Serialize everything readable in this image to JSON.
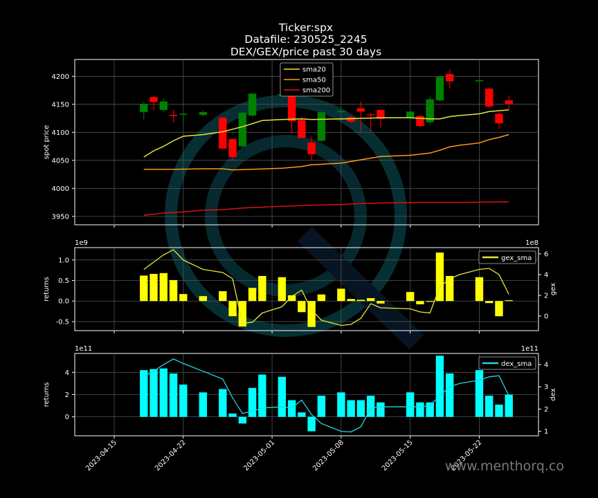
{
  "title_lines": [
    "Ticker:spx",
    "Datafile: 230525_2245",
    "DEX/GEX/price past 30 days"
  ],
  "watermark": "www.menthorq.co",
  "colors": {
    "background": "#000000",
    "up": "#008000",
    "down": "#ff0000",
    "sma20": "#e8e83a",
    "sma50": "#ff9a1a",
    "sma200": "#e01010",
    "gex_bar": "#ffff00",
    "gex_line": "#e8e83a",
    "dex_bar": "#00ffff",
    "dex_line": "#22d8e0",
    "grid": "#555555"
  },
  "x_dates": [
    "2023-04-18",
    "2023-04-19",
    "2023-04-20",
    "2023-04-21",
    "2023-04-22",
    "2023-04-24",
    "2023-04-26",
    "2023-04-27",
    "2023-04-28",
    "2023-04-29",
    "2023-04-30",
    "2023-05-02",
    "2023-05-03",
    "2023-05-04",
    "2023-05-05",
    "2023-05-06",
    "2023-05-08",
    "2023-05-09",
    "2023-05-10",
    "2023-05-11",
    "2023-05-12",
    "2023-05-13",
    "2023-05-15",
    "2023-05-16",
    "2023-05-17",
    "2023-05-18",
    "2023-05-19",
    "2023-05-20",
    "2023-05-22",
    "2023-05-23",
    "2023-05-24",
    "2023-05-25"
  ],
  "x_ticks": [
    "2023-04-15",
    "2023-04-22",
    "2023-05-01",
    "2023-05-08",
    "2023-05-15",
    "2023-05-22"
  ],
  "chart_data": [
    {
      "type": "candlestick",
      "ylabel": "spot price",
      "ylim": [
        3935,
        4230
      ],
      "yticks": [
        3950,
        4000,
        4050,
        4100,
        4150,
        4200
      ],
      "legend_position": "top-center",
      "candles": [
        {
          "date": "2023-04-18",
          "open": 4136,
          "close": 4151,
          "high": 4154,
          "low": 4123
        },
        {
          "date": "2023-04-19",
          "open": 4163,
          "close": 4154,
          "high": 4165,
          "low": 4139
        },
        {
          "date": "2023-04-20",
          "open": 4140,
          "close": 4155,
          "high": 4160,
          "low": 4136
        },
        {
          "date": "2023-04-21",
          "open": 4131,
          "close": 4129,
          "high": 4140,
          "low": 4117
        },
        {
          "date": "2023-04-22",
          "open": 4132,
          "close": 4133,
          "high": 4135,
          "low": 4116
        },
        {
          "date": "2023-04-24",
          "open": 4131,
          "close": 4136,
          "high": 4139,
          "low": 4129
        },
        {
          "date": "2023-04-26",
          "open": 4126,
          "close": 4071,
          "high": 4128,
          "low": 4070
        },
        {
          "date": "2023-04-27",
          "open": 4088,
          "close": 4056,
          "high": 4089,
          "low": 4050
        },
        {
          "date": "2023-04-28",
          "open": 4075,
          "close": 4135,
          "high": 4137,
          "low": 4073
        },
        {
          "date": "2023-04-29",
          "open": 4130,
          "close": 4169,
          "high": 4170,
          "low": 4127
        },
        {
          "date": "2023-05-02",
          "open": 4166,
          "close": 4168,
          "high": 4169,
          "low": 4164
        },
        {
          "date": "2023-05-03",
          "open": 4165,
          "close": 4120,
          "high": 4167,
          "low": 4098
        },
        {
          "date": "2023-05-04",
          "open": 4122,
          "close": 4090,
          "high": 4128,
          "low": 4089
        },
        {
          "date": "2023-05-05",
          "open": 4082,
          "close": 4061,
          "high": 4092,
          "low": 4050
        },
        {
          "date": "2023-05-06",
          "open": 4085,
          "close": 4136,
          "high": 4138,
          "low": 4083
        },
        {
          "date": "2023-05-08",
          "open": 4136,
          "close": 4138,
          "high": 4140,
          "low": 4134
        },
        {
          "date": "2023-05-09",
          "open": 4127,
          "close": 4119,
          "high": 4129,
          "low": 4116
        },
        {
          "date": "2023-05-10",
          "open": 4143,
          "close": 4137,
          "high": 4155,
          "low": 4100
        },
        {
          "date": "2023-05-11",
          "open": 4132,
          "close": 4131,
          "high": 4135,
          "low": 4102
        },
        {
          "date": "2023-05-12",
          "open": 4140,
          "close": 4124,
          "high": 4142,
          "low": 4108
        },
        {
          "date": "2023-05-15",
          "open": 4126,
          "close": 4137,
          "high": 4138,
          "low": 4125
        },
        {
          "date": "2023-05-16",
          "open": 4129,
          "close": 4111,
          "high": 4131,
          "low": 4109
        },
        {
          "date": "2023-05-17",
          "open": 4118,
          "close": 4159,
          "high": 4164,
          "low": 4113
        },
        {
          "date": "2023-05-18",
          "open": 4157,
          "close": 4199,
          "high": 4200,
          "low": 4155
        },
        {
          "date": "2023-05-19",
          "open": 4204,
          "close": 4191,
          "high": 4212,
          "low": 4178
        },
        {
          "date": "2023-05-22",
          "open": 4191,
          "close": 4193,
          "high": 4196,
          "low": 4189
        },
        {
          "date": "2023-05-23",
          "open": 4178,
          "close": 4146,
          "high": 4180,
          "low": 4144
        },
        {
          "date": "2023-05-24",
          "open": 4133,
          "close": 4116,
          "high": 4135,
          "low": 4106
        },
        {
          "date": "2023-05-25",
          "open": 4157,
          "close": 4151,
          "high": 4166,
          "low": 4140
        }
      ],
      "series": [
        {
          "name": "sma20",
          "color": "#e8e83a",
          "points": [
            [
              "2023-04-18",
              4056
            ],
            [
              "2023-04-19",
              4067
            ],
            [
              "2023-04-20",
              4075
            ],
            [
              "2023-04-21",
              4085
            ],
            [
              "2023-04-22",
              4093
            ],
            [
              "2023-04-24",
              4096
            ],
            [
              "2023-04-26",
              4101
            ],
            [
              "2023-04-28",
              4110
            ],
            [
              "2023-04-30",
              4121
            ],
            [
              "2023-05-02",
              4123
            ],
            [
              "2023-05-04",
              4124
            ],
            [
              "2023-05-05",
              4123
            ],
            [
              "2023-05-08",
              4124
            ],
            [
              "2023-05-12",
              4126
            ],
            [
              "2023-05-15",
              4126
            ],
            [
              "2023-05-17",
              4124
            ],
            [
              "2023-05-18",
              4124
            ],
            [
              "2023-05-19",
              4128
            ],
            [
              "2023-05-20",
              4130
            ],
            [
              "2023-05-22",
              4133
            ],
            [
              "2023-05-23",
              4137
            ],
            [
              "2023-05-25",
              4140
            ]
          ]
        },
        {
          "name": "sma50",
          "color": "#ff9a1a",
          "points": [
            [
              "2023-04-18",
              4034
            ],
            [
              "2023-04-20",
              4034
            ],
            [
              "2023-04-21",
              4034
            ],
            [
              "2023-04-24",
              4035
            ],
            [
              "2023-04-26",
              4035
            ],
            [
              "2023-04-27",
              4033
            ],
            [
              "2023-04-29",
              4034
            ],
            [
              "2023-05-02",
              4036
            ],
            [
              "2023-05-04",
              4039
            ],
            [
              "2023-05-05",
              4042
            ],
            [
              "2023-05-08",
              4045
            ],
            [
              "2023-05-10",
              4051
            ],
            [
              "2023-05-12",
              4057
            ],
            [
              "2023-05-15",
              4059
            ],
            [
              "2023-05-17",
              4063
            ],
            [
              "2023-05-18",
              4068
            ],
            [
              "2023-05-19",
              4074
            ],
            [
              "2023-05-20",
              4077
            ],
            [
              "2023-05-22",
              4081
            ],
            [
              "2023-05-23",
              4087
            ],
            [
              "2023-05-24",
              4091
            ],
            [
              "2023-05-25",
              4096
            ]
          ]
        },
        {
          "name": "sma200",
          "color": "#e01010",
          "points": [
            [
              "2023-04-18",
              3952
            ],
            [
              "2023-04-20",
              3956
            ],
            [
              "2023-04-22",
              3958
            ],
            [
              "2023-04-24",
              3961
            ],
            [
              "2023-04-26",
              3962
            ],
            [
              "2023-04-28",
              3965
            ],
            [
              "2023-05-02",
              3968
            ],
            [
              "2023-05-05",
              3970
            ],
            [
              "2023-05-08",
              3971
            ],
            [
              "2023-05-10",
              3973
            ],
            [
              "2023-05-12",
              3974
            ],
            [
              "2023-05-16",
              3975
            ],
            [
              "2023-05-20",
              3975
            ],
            [
              "2023-05-25",
              3976
            ]
          ]
        }
      ]
    },
    {
      "type": "bar",
      "ylabel": "returns",
      "y2label": "gex",
      "exp_left": "1e9",
      "exp_right": "1e8",
      "ylim": [
        -0.72,
        1.3
      ],
      "yticks": [
        -0.5,
        0.0,
        0.5,
        1.0
      ],
      "ylim_right": [
        -1.4,
        6.6
      ],
      "yticks_right": [
        0,
        2,
        4,
        6
      ],
      "legend": "gex_sma",
      "bars": [
        [
          "2023-04-18",
          0.62
        ],
        [
          "2023-04-19",
          0.66
        ],
        [
          "2023-04-20",
          0.68
        ],
        [
          "2023-04-21",
          0.51
        ],
        [
          "2023-04-22",
          0.17
        ],
        [
          "2023-04-24",
          0.12
        ],
        [
          "2023-04-26",
          0.24
        ],
        [
          "2023-04-27",
          -0.37
        ],
        [
          "2023-04-28",
          -0.62
        ],
        [
          "2023-04-29",
          0.32
        ],
        [
          "2023-04-30",
          0.61
        ],
        [
          "2023-05-02",
          0.58
        ],
        [
          "2023-05-03",
          0.14
        ],
        [
          "2023-05-04",
          -0.27
        ],
        [
          "2023-05-05",
          -0.63
        ],
        [
          "2023-05-06",
          0.16
        ],
        [
          "2023-05-08",
          0.3
        ],
        [
          "2023-05-09",
          0.05
        ],
        [
          "2023-05-10",
          0.03
        ],
        [
          "2023-05-11",
          0.07
        ],
        [
          "2023-05-12",
          -0.06
        ],
        [
          "2023-05-15",
          0.22
        ],
        [
          "2023-05-16",
          -0.08
        ],
        [
          "2023-05-17",
          -0.02
        ],
        [
          "2023-05-18",
          1.18
        ],
        [
          "2023-05-19",
          0.61
        ],
        [
          "2023-05-22",
          0.58
        ],
        [
          "2023-05-23",
          -0.05
        ],
        [
          "2023-05-24",
          -0.37
        ],
        [
          "2023-05-25",
          0.02
        ]
      ],
      "line": [
        [
          "2023-04-18",
          4.5
        ],
        [
          "2023-04-19",
          5.2
        ],
        [
          "2023-04-20",
          5.9
        ],
        [
          "2023-04-21",
          6.4
        ],
        [
          "2023-04-22",
          5.4
        ],
        [
          "2023-04-24",
          4.5
        ],
        [
          "2023-04-26",
          4.2
        ],
        [
          "2023-04-27",
          3.6
        ],
        [
          "2023-04-28",
          -0.7
        ],
        [
          "2023-04-29",
          -0.6
        ],
        [
          "2023-04-30",
          0.3
        ],
        [
          "2023-05-02",
          0.9
        ],
        [
          "2023-05-03",
          1.9
        ],
        [
          "2023-05-04",
          2.5
        ],
        [
          "2023-05-05",
          0.6
        ],
        [
          "2023-05-06",
          -0.4
        ],
        [
          "2023-05-08",
          -0.9
        ],
        [
          "2023-05-09",
          -0.8
        ],
        [
          "2023-05-10",
          -0.2
        ],
        [
          "2023-05-11",
          1.2
        ],
        [
          "2023-05-12",
          0.8
        ],
        [
          "2023-05-15",
          0.7
        ],
        [
          "2023-05-16",
          0.4
        ],
        [
          "2023-05-17",
          0.3
        ],
        [
          "2023-05-18",
          2.8
        ],
        [
          "2023-05-19",
          3.6
        ],
        [
          "2023-05-20",
          4.0
        ],
        [
          "2023-05-22",
          4.5
        ],
        [
          "2023-05-23",
          4.6
        ],
        [
          "2023-05-24",
          4.0
        ],
        [
          "2023-05-25",
          2.1
        ]
      ]
    },
    {
      "type": "bar",
      "ylabel": "returns",
      "y2label": "dex",
      "exp_left": "1e11",
      "exp_right": "1e11",
      "ylim": [
        -1.7,
        5.7
      ],
      "yticks": [
        0,
        2,
        4
      ],
      "ylim_right": [
        0.8,
        4.5
      ],
      "yticks_right": [
        1,
        2,
        3,
        4
      ],
      "legend": "dex_sma",
      "bars": [
        [
          "2023-04-18",
          4.2
        ],
        [
          "2023-04-19",
          4.3
        ],
        [
          "2023-04-20",
          4.35
        ],
        [
          "2023-04-21",
          3.9
        ],
        [
          "2023-04-22",
          2.9
        ],
        [
          "2023-04-24",
          2.2
        ],
        [
          "2023-04-26",
          2.5
        ],
        [
          "2023-04-27",
          0.3
        ],
        [
          "2023-04-28",
          -0.6
        ],
        [
          "2023-04-29",
          2.6
        ],
        [
          "2023-04-30",
          3.8
        ],
        [
          "2023-05-02",
          3.6
        ],
        [
          "2023-05-03",
          1.5
        ],
        [
          "2023-05-04",
          0.4
        ],
        [
          "2023-05-05",
          -1.3
        ],
        [
          "2023-05-06",
          1.9
        ],
        [
          "2023-05-08",
          2.2
        ],
        [
          "2023-05-09",
          1.5
        ],
        [
          "2023-05-10",
          1.5
        ],
        [
          "2023-05-11",
          1.9
        ],
        [
          "2023-05-12",
          1.3
        ],
        [
          "2023-05-15",
          2.2
        ],
        [
          "2023-05-16",
          1.3
        ],
        [
          "2023-05-17",
          1.3
        ],
        [
          "2023-05-18",
          5.5
        ],
        [
          "2023-05-19",
          3.9
        ],
        [
          "2023-05-22",
          4.2
        ],
        [
          "2023-05-23",
          1.9
        ],
        [
          "2023-05-24",
          1.1
        ],
        [
          "2023-05-25",
          2.0
        ]
      ],
      "line": [
        [
          "2023-04-18",
          3.45
        ],
        [
          "2023-04-19",
          3.7
        ],
        [
          "2023-04-20",
          4.0
        ],
        [
          "2023-04-21",
          4.25
        ],
        [
          "2023-04-22",
          4.05
        ],
        [
          "2023-04-24",
          3.7
        ],
        [
          "2023-04-26",
          3.35
        ],
        [
          "2023-04-27",
          2.5
        ],
        [
          "2023-04-28",
          1.8
        ],
        [
          "2023-04-29",
          1.9
        ],
        [
          "2023-04-30",
          2.05
        ],
        [
          "2023-05-02",
          2.1
        ],
        [
          "2023-05-03",
          2.05
        ],
        [
          "2023-05-04",
          2.4
        ],
        [
          "2023-05-05",
          1.75
        ],
        [
          "2023-05-06",
          1.35
        ],
        [
          "2023-05-08",
          1.0
        ],
        [
          "2023-05-09",
          0.97
        ],
        [
          "2023-05-10",
          1.2
        ],
        [
          "2023-05-11",
          2.05
        ],
        [
          "2023-05-12",
          2.1
        ],
        [
          "2023-05-15",
          2.1
        ],
        [
          "2023-05-16",
          2.1
        ],
        [
          "2023-05-17",
          2.15
        ],
        [
          "2023-05-18",
          2.6
        ],
        [
          "2023-05-19",
          3.0
        ],
        [
          "2023-05-20",
          3.15
        ],
        [
          "2023-05-22",
          3.3
        ],
        [
          "2023-05-23",
          3.45
        ],
        [
          "2023-05-24",
          3.5
        ],
        [
          "2023-05-25",
          2.6
        ]
      ]
    }
  ]
}
